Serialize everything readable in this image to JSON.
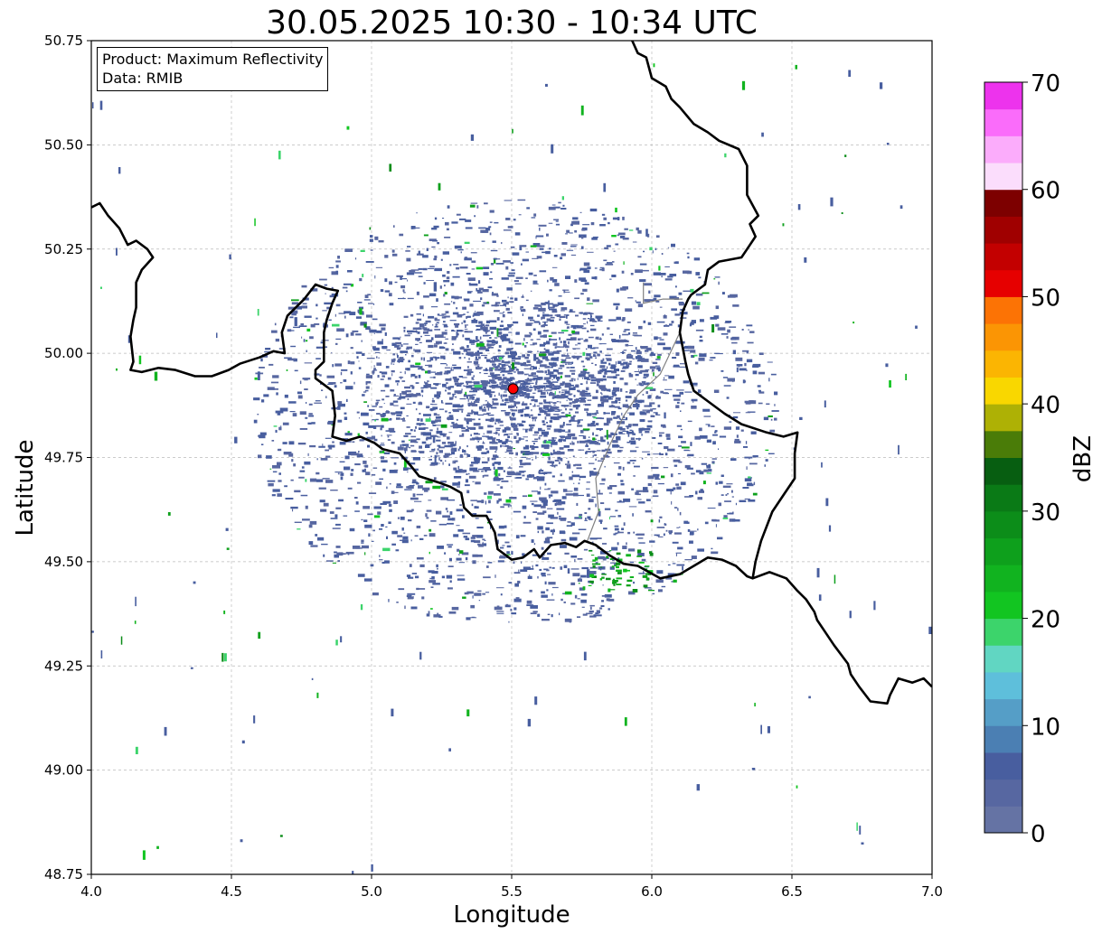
{
  "title": "30.05.2025 10:30 - 10:34 UTC",
  "x_axis": {
    "label": "Longitude",
    "min": 4.0,
    "max": 7.0,
    "ticks": [
      4.0,
      4.5,
      5.0,
      5.5,
      6.0,
      6.5,
      7.0
    ],
    "tick_labels": [
      "4.0",
      "4.5",
      "5.0",
      "5.5",
      "6.0",
      "6.5",
      "7.0"
    ]
  },
  "y_axis": {
    "label": "Latitude",
    "min": 48.75,
    "max": 50.75,
    "ticks": [
      48.75,
      49.0,
      49.25,
      49.5,
      49.75,
      50.0,
      50.25,
      50.5,
      50.75
    ],
    "tick_labels": [
      "48.75",
      "49.00",
      "49.25",
      "49.50",
      "49.75",
      "50.00",
      "50.25",
      "50.50",
      "50.75"
    ]
  },
  "grid": true,
  "info_box": {
    "product": "Product: Maximum Reflectivity",
    "data": "Data: RMIB"
  },
  "radar_site": {
    "lon": 5.505,
    "lat": 49.915,
    "color": "#ff0000"
  },
  "colorbar": {
    "label": "dBZ",
    "min": 0,
    "max": 70,
    "ticks": [
      0,
      10,
      20,
      30,
      40,
      50,
      60,
      70
    ],
    "tick_labels": [
      "0",
      "10",
      "20",
      "30",
      "40",
      "50",
      "60",
      "70"
    ],
    "colors": [
      "#6573a4",
      "#5767a1",
      "#485e9f",
      "#4b7fb3",
      "#559ec7",
      "#5ebfdb",
      "#61d6c2",
      "#3cd46b",
      "#12c521",
      "#11b31f",
      "#0ea01c",
      "#0c8d19",
      "#0a7a16",
      "#075e11",
      "#4a7c08",
      "#aeb105",
      "#f9d700",
      "#fbb502",
      "#fb9504",
      "#fc7305",
      "#e60000",
      "#c30000",
      "#a00000",
      "#7d0000",
      "#fbddfc",
      "#fbacfb",
      "#fa6cfa",
      "#ed33ed"
    ]
  },
  "borders": {
    "national": [
      [
        [
          4.0,
          50.35
        ],
        [
          4.03,
          50.36
        ],
        [
          4.06,
          50.33
        ],
        [
          4.1,
          50.3
        ],
        [
          4.13,
          50.26
        ],
        [
          4.16,
          50.27
        ],
        [
          4.2,
          50.25
        ],
        [
          4.22,
          50.23
        ],
        [
          4.18,
          50.2
        ],
        [
          4.16,
          50.17
        ],
        [
          4.16,
          50.11
        ],
        [
          4.15,
          50.08
        ],
        [
          4.14,
          50.04
        ],
        [
          4.15,
          49.98
        ],
        [
          4.14,
          49.96
        ],
        [
          4.18,
          49.955
        ],
        [
          4.24,
          49.965
        ],
        [
          4.3,
          49.96
        ],
        [
          4.37,
          49.945
        ],
        [
          4.43,
          49.945
        ],
        [
          4.49,
          49.96
        ],
        [
          4.53,
          49.975
        ],
        [
          4.6,
          49.99
        ],
        [
          4.65,
          50.005
        ],
        [
          4.69,
          50.0
        ],
        [
          4.68,
          50.05
        ],
        [
          4.7,
          50.09
        ],
        [
          4.76,
          50.13
        ],
        [
          4.8,
          50.165
        ],
        [
          4.84,
          50.155
        ],
        [
          4.88,
          50.15
        ],
        [
          4.86,
          50.12
        ],
        [
          4.84,
          50.08
        ],
        [
          4.83,
          50.05
        ],
        [
          4.83,
          49.98
        ],
        [
          4.8,
          49.96
        ],
        [
          4.8,
          49.94
        ],
        [
          4.86,
          49.91
        ],
        [
          4.87,
          49.85
        ],
        [
          4.86,
          49.8
        ],
        [
          4.91,
          49.79
        ],
        [
          4.96,
          49.8
        ],
        [
          5.01,
          49.785
        ],
        [
          5.04,
          49.77
        ],
        [
          5.1,
          49.76
        ],
        [
          5.14,
          49.73
        ],
        [
          5.17,
          49.705
        ],
        [
          5.24,
          49.69
        ],
        [
          5.28,
          49.68
        ],
        [
          5.32,
          49.665
        ],
        [
          5.33,
          49.63
        ],
        [
          5.36,
          49.61
        ],
        [
          5.41,
          49.61
        ],
        [
          5.44,
          49.57
        ],
        [
          5.45,
          49.53
        ],
        [
          5.5,
          49.505
        ],
        [
          5.54,
          49.51
        ],
        [
          5.58,
          49.53
        ],
        [
          5.6,
          49.51
        ],
        [
          5.64,
          49.54
        ],
        [
          5.69,
          49.545
        ],
        [
          5.73,
          49.535
        ],
        [
          5.76,
          49.55
        ],
        [
          5.8,
          49.54
        ],
        [
          5.85,
          49.515
        ],
        [
          5.9,
          49.495
        ],
        [
          5.95,
          49.49
        ],
        [
          5.99,
          49.475
        ],
        [
          6.03,
          49.46
        ],
        [
          6.1,
          49.47
        ],
        [
          6.15,
          49.49
        ],
        [
          6.2,
          49.51
        ],
        [
          6.25,
          49.505
        ],
        [
          6.3,
          49.49
        ],
        [
          6.34,
          49.465
        ],
        [
          6.36,
          49.46
        ],
        [
          6.42,
          49.475
        ],
        [
          6.48,
          49.46
        ],
        [
          6.52,
          49.43
        ],
        [
          6.55,
          49.41
        ],
        [
          6.58,
          49.38
        ],
        [
          6.59,
          49.36
        ],
        [
          6.62,
          49.33
        ],
        [
          6.65,
          49.3
        ],
        [
          6.7,
          49.255
        ],
        [
          6.71,
          49.23
        ],
        [
          6.74,
          49.2
        ],
        [
          6.78,
          49.165
        ],
        [
          6.84,
          49.16
        ],
        [
          6.85,
          49.18
        ],
        [
          6.88,
          49.22
        ],
        [
          6.93,
          49.21
        ],
        [
          6.97,
          49.22
        ],
        [
          7.0,
          49.2
        ]
      ],
      [
        [
          5.82,
          50.765
        ],
        [
          5.86,
          50.76
        ],
        [
          5.9,
          50.765
        ],
        [
          5.93,
          50.75
        ],
        [
          5.95,
          50.72
        ],
        [
          5.98,
          50.71
        ],
        [
          6.0,
          50.66
        ],
        [
          6.05,
          50.64
        ],
        [
          6.07,
          50.61
        ],
        [
          6.1,
          50.59
        ],
        [
          6.15,
          50.55
        ],
        [
          6.2,
          50.53
        ],
        [
          6.24,
          50.51
        ],
        [
          6.31,
          50.49
        ],
        [
          6.34,
          50.45
        ],
        [
          6.34,
          50.38
        ],
        [
          6.38,
          50.33
        ],
        [
          6.35,
          50.31
        ],
        [
          6.37,
          50.28
        ],
        [
          6.34,
          50.25
        ],
        [
          6.32,
          50.23
        ],
        [
          6.24,
          50.22
        ],
        [
          6.2,
          50.2
        ],
        [
          6.19,
          50.165
        ],
        [
          6.14,
          50.14
        ],
        [
          6.13,
          50.13
        ],
        [
          6.11,
          50.1
        ],
        [
          6.1,
          50.05
        ],
        [
          6.12,
          49.98
        ],
        [
          6.13,
          49.95
        ],
        [
          6.15,
          49.91
        ],
        [
          6.21,
          49.88
        ],
        [
          6.26,
          49.855
        ],
        [
          6.32,
          49.83
        ],
        [
          6.41,
          49.81
        ],
        [
          6.47,
          49.8
        ],
        [
          6.52,
          49.81
        ],
        [
          6.51,
          49.76
        ],
        [
          6.51,
          49.7
        ],
        [
          6.47,
          49.66
        ],
        [
          6.43,
          49.62
        ],
        [
          6.39,
          49.55
        ],
        [
          6.37,
          49.5
        ],
        [
          6.36,
          49.46
        ]
      ]
    ],
    "national_secondary": [
      [
        [
          5.97,
          50.17
        ],
        [
          5.97,
          50.12
        ],
        [
          6.04,
          50.13
        ],
        [
          6.11,
          50.13
        ]
      ],
      [
        [
          5.77,
          49.55
        ],
        [
          5.81,
          49.62
        ],
        [
          5.8,
          49.7
        ],
        [
          5.85,
          49.78
        ],
        [
          5.9,
          49.85
        ],
        [
          5.95,
          49.9
        ],
        [
          6.03,
          49.95
        ],
        [
          6.1,
          50.05
        ]
      ]
    ]
  }
}
